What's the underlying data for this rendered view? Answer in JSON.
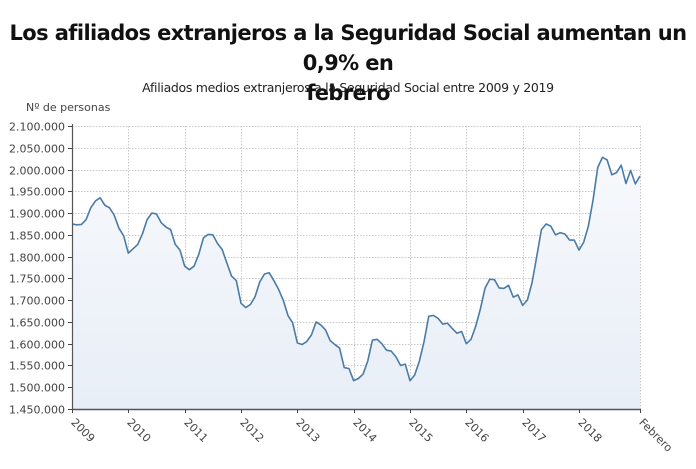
{
  "chart_data": {
    "type": "area",
    "title": "Los afiliados extranjeros a la Seguridad Social aumentan un 0,9% en febrero",
    "title_lines": [
      "Los afiliados extranjeros a la Seguridad Social aumentan un 0,9% en",
      "febrero"
    ],
    "subtitle": "Afiliados medios extranjeros a la Seguridad Social entre 2009 y 2019",
    "ylabel": "Nº de personas",
    "xlabel": "",
    "ylim": [
      1450000,
      2100000
    ],
    "yticks": [
      2100000,
      2050000,
      2000000,
      1950000,
      1900000,
      1850000,
      1800000,
      1750000,
      1700000,
      1650000,
      1600000,
      1550000,
      1500000,
      1450000
    ],
    "ytick_labels": [
      "2.100.000",
      "2.050.000",
      "2.000.000",
      "1.950.000",
      "1.900.000",
      "1.850.000",
      "1.800.000",
      "1.750.000",
      "1.700.000",
      "1.650.000",
      "1.600.000",
      "1.550.000",
      "1.500.000",
      "1.450.000"
    ],
    "xticks": [
      {
        "label": "2009",
        "month_index": 0
      },
      {
        "label": "2010",
        "month_index": 12
      },
      {
        "label": "2011",
        "month_index": 24
      },
      {
        "label": "2012",
        "month_index": 36
      },
      {
        "label": "2013",
        "month_index": 48
      },
      {
        "label": "2014",
        "month_index": 60
      },
      {
        "label": "2015",
        "month_index": 72
      },
      {
        "label": "2016",
        "month_index": 84
      },
      {
        "label": "2017",
        "month_index": 96
      },
      {
        "label": "2018",
        "month_index": 108
      },
      {
        "label": "Febrero",
        "month_index": 121
      }
    ],
    "grid": true,
    "legend": "none",
    "series": [
      {
        "name": "Afiliados medios extranjeros",
        "color": "#4a7ba6",
        "fill": "#e8eef7",
        "start": "2009-01",
        "frequency": "monthly",
        "values": [
          1875000,
          1873000,
          1874000,
          1885000,
          1912000,
          1928000,
          1935000,
          1918000,
          1912000,
          1895000,
          1865000,
          1848000,
          1808000,
          1818000,
          1828000,
          1852000,
          1885000,
          1900000,
          1898000,
          1878000,
          1868000,
          1862000,
          1828000,
          1815000,
          1778000,
          1770000,
          1778000,
          1805000,
          1843000,
          1851000,
          1850000,
          1830000,
          1816000,
          1785000,
          1755000,
          1745000,
          1693000,
          1683000,
          1690000,
          1708000,
          1742000,
          1760000,
          1763000,
          1745000,
          1725000,
          1700000,
          1665000,
          1648000,
          1602000,
          1598000,
          1605000,
          1620000,
          1650000,
          1643000,
          1632000,
          1607000,
          1598000,
          1590000,
          1545000,
          1543000,
          1515000,
          1520000,
          1530000,
          1560000,
          1608000,
          1610000,
          1600000,
          1585000,
          1583000,
          1570000,
          1550000,
          1553000,
          1515000,
          1528000,
          1560000,
          1605000,
          1663000,
          1665000,
          1658000,
          1645000,
          1647000,
          1635000,
          1624000,
          1628000,
          1600000,
          1610000,
          1640000,
          1680000,
          1728000,
          1748000,
          1747000,
          1728000,
          1727000,
          1734000,
          1707000,
          1712000,
          1688000,
          1700000,
          1740000,
          1800000,
          1862000,
          1875000,
          1870000,
          1850000,
          1855000,
          1852000,
          1838000,
          1838000,
          1815000,
          1833000,
          1870000,
          1930000,
          2005000,
          2028000,
          2022000,
          1988000,
          1993000,
          2010000,
          1968000,
          1998000,
          1967000,
          1985000
        ]
      }
    ]
  }
}
